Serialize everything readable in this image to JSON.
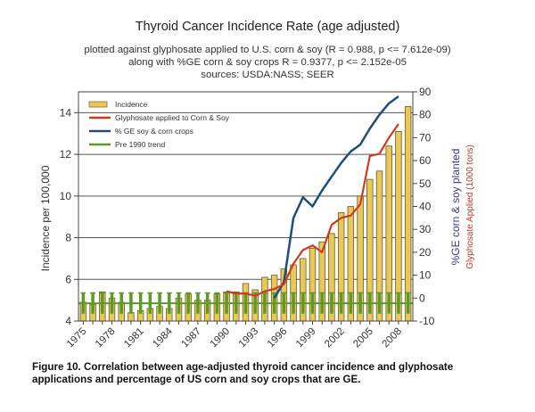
{
  "chart_data": {
    "type": "bar",
    "title": "Thyroid Cancer Incidence Rate (age adjusted)",
    "subtitles": [
      "plotted against glyphosate applied to U.S. corn & soy (R = 0.988, p <= 7.612e-09)",
      "along with %GE corn & soy crops R = 0.9377, p <= 2.152e-05",
      "sources: USDA:NASS; SEER"
    ],
    "ylabel": "Incidence per 100,000",
    "ylabel_right_1": "%GE corn & soy planted",
    "ylabel_right_2": "Glyphosate Applied (1000 tons)",
    "ylim": [
      4,
      15
    ],
    "ylim_right": [
      -10,
      90
    ],
    "yticks": [
      "4",
      "6",
      "8",
      "10",
      "12",
      "14"
    ],
    "yticks_right": [
      "-10",
      "0",
      "10",
      "20",
      "30",
      "40",
      "50",
      "60",
      "70",
      "80",
      "90"
    ],
    "xticks": [
      "1975",
      "1978",
      "1981",
      "1984",
      "1987",
      "1990",
      "1993",
      "1996",
      "1999",
      "2002",
      "2005",
      "2008"
    ],
    "legend": [
      "Incidence",
      "Glyphosate applied to Corn & Soy",
      "% GE soy & corn crops",
      "Pre 1990 trend"
    ],
    "legend_position": "top-left",
    "grid": true,
    "years": [
      1975,
      1976,
      1977,
      1978,
      1979,
      1980,
      1981,
      1982,
      1983,
      1984,
      1985,
      1986,
      1987,
      1988,
      1989,
      1990,
      1991,
      1992,
      1993,
      1994,
      1995,
      1996,
      1997,
      1998,
      1999,
      2000,
      2001,
      2002,
      2003,
      2004,
      2005,
      2006,
      2007,
      2008,
      2009
    ],
    "series": [
      {
        "name": "Incidence",
        "axis": "left",
        "type": "bar",
        "values": [
          4.9,
          4.8,
          5.4,
          5.1,
          4.9,
          4.4,
          4.5,
          4.6,
          4.7,
          4.6,
          5.1,
          5.3,
          5.0,
          5.0,
          5.3,
          5.4,
          5.4,
          5.8,
          5.5,
          6.1,
          6.2,
          6.5,
          6.7,
          7.0,
          7.5,
          7.8,
          8.2,
          9.2,
          9.5,
          10.0,
          10.8,
          11.2,
          12.4,
          13.1,
          14.3
        ]
      },
      {
        "name": "Glyphosate applied to Corn & Soy",
        "axis": "right",
        "type": "line",
        "x": [
          1990,
          1991,
          1992,
          1993,
          1994,
          1995,
          1996,
          1997,
          1998,
          1999,
          2000,
          2001,
          2002,
          2003,
          2004,
          2005,
          2006,
          2007,
          2008
        ],
        "values": [
          3,
          2,
          2,
          1,
          3,
          4,
          6,
          15,
          21,
          23,
          20,
          32,
          35,
          36,
          41,
          62,
          63,
          70,
          76
        ]
      },
      {
        "name": "% GE soy & corn crops",
        "axis": "right",
        "type": "line",
        "x": [
          1995,
          1996,
          1997,
          1998,
          1999,
          2000,
          2001,
          2002,
          2003,
          2004,
          2005,
          2006,
          2007,
          2008
        ],
        "values": [
          0,
          7,
          35,
          44,
          40,
          47,
          53,
          59,
          64,
          67,
          74,
          80,
          85,
          88
        ]
      },
      {
        "name": "Pre 1990 trend",
        "axis": "left",
        "type": "errorbar",
        "mean": 4.85,
        "upper": 5.35,
        "lower": 4.35
      }
    ],
    "colors": {
      "incidence": "#e8c85a",
      "incidence_edge": "#6b5a1e",
      "glyphosate": "#d03a1c",
      "ge": "#1d4f7c",
      "trend": "#5a9a2a",
      "ge_label": "#3a3a8a",
      "gly_label": "#c0392b"
    }
  },
  "caption": {
    "line1": "Figure 10. Correlation between age-adjusted thyroid cancer incidence and glyphosate",
    "line2": "applications and percentage of US corn and soy crops that are GE."
  }
}
